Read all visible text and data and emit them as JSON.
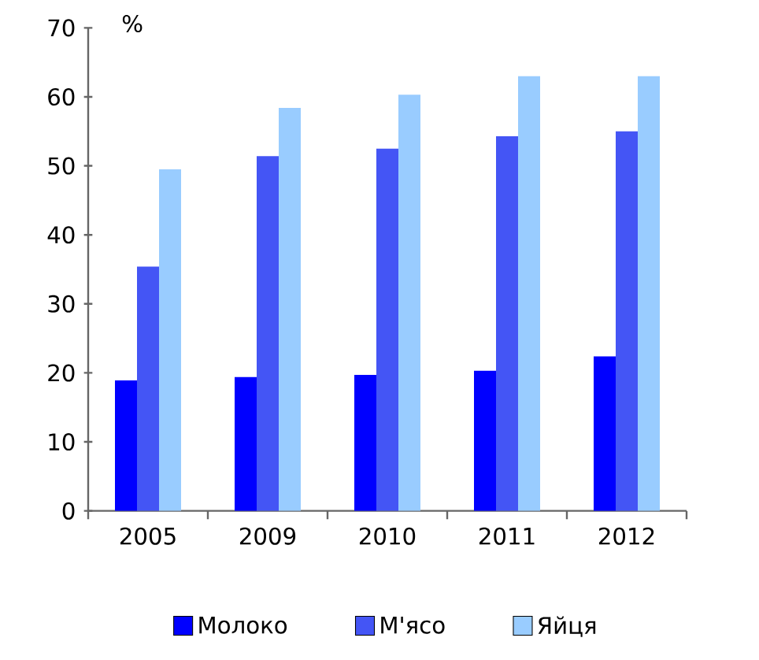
{
  "chart_data": {
    "type": "bar",
    "ylabel": "%",
    "categories": [
      "2005",
      "2009",
      "2010",
      "2011",
      "2012"
    ],
    "series": [
      {
        "name": "Молоко",
        "color": "#0000ff",
        "values": [
          18.9,
          19.4,
          19.7,
          20.3,
          22.4
        ]
      },
      {
        "name": "М'ясо",
        "color": "#4455f5",
        "values": [
          35.4,
          51.4,
          52.5,
          54.3,
          55.0
        ]
      },
      {
        "name": "Яйця",
        "color": "#99ccff",
        "values": [
          49.5,
          58.4,
          60.3,
          63.0,
          63.0
        ]
      }
    ],
    "ylim": [
      0,
      70
    ],
    "yticks": [
      0,
      10,
      20,
      30,
      40,
      50,
      60,
      70
    ],
    "grid": false,
    "legend": "bottom"
  }
}
